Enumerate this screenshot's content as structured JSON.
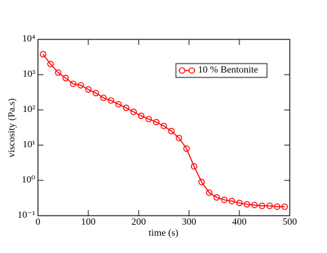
{
  "chart_data": {
    "type": "line",
    "x_label": "time (s)",
    "y_label": "viscosity (Pa.s)",
    "y_log": true,
    "legend": "upper right",
    "x": [
      10,
      25,
      40,
      55,
      70,
      85,
      100,
      115,
      130,
      145,
      160,
      175,
      190,
      205,
      220,
      235,
      250,
      265,
      280,
      295,
      310,
      325,
      340,
      355,
      370,
      385,
      400,
      415,
      430,
      445,
      460,
      475,
      490
    ],
    "series": [
      {
        "name": "10 % Bentonite",
        "color": "#ff0000",
        "values": [
          3800,
          2000,
          1150,
          800,
          550,
          500,
          380,
          300,
          220,
          185,
          145,
          115,
          88,
          68,
          55,
          45,
          35,
          25,
          16,
          8,
          2.5,
          0.9,
          0.45,
          0.33,
          0.28,
          0.26,
          0.23,
          0.21,
          0.2,
          0.19,
          0.19,
          0.18,
          0.18
        ]
      }
    ],
    "xlim": [
      0,
      500
    ],
    "xticks": [
      0,
      100,
      200,
      300,
      400,
      500
    ],
    "ylim": [
      0.1,
      10000
    ],
    "yticks": [
      {
        "value": 0.1,
        "label": "10⁻¹"
      },
      {
        "value": 1,
        "label": "10⁰"
      },
      {
        "value": 10,
        "label": "10¹"
      },
      {
        "value": 100,
        "label": "10²"
      },
      {
        "value": 1000,
        "label": "10³"
      },
      {
        "value": 10000,
        "label": "10⁴"
      }
    ]
  }
}
